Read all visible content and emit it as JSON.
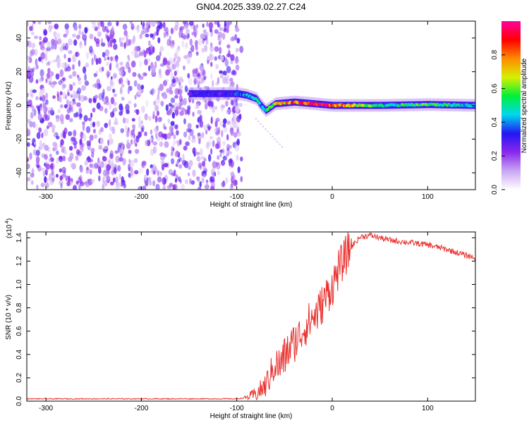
{
  "title": "GN04.2025.339.02.27.C24",
  "colors": {
    "snr_line": "#e8312e",
    "colormap": [
      "#ffffff",
      "#c9a6f2",
      "#8a28ee",
      "#2216f2",
      "#00d7f0",
      "#00f03a",
      "#d7f000",
      "#ff8a00",
      "#ff0000",
      "#ff00a0"
    ]
  },
  "chart_data": [
    {
      "type": "heatmap",
      "name": "spectrogram",
      "xlabel": "Height of straight line (km)",
      "ylabel": "Frequency (Hz)",
      "xlim": [
        -320,
        150
      ],
      "ylim": [
        -50,
        50
      ],
      "x_ticks": [
        -300,
        -200,
        -100,
        0,
        100
      ],
      "y_ticks": [
        -40,
        -20,
        0,
        20,
        40
      ],
      "grid": false,
      "noise_region_x": [
        -320,
        -95
      ],
      "trace": {
        "x": [
          -150,
          -130,
          -110,
          -100,
          -90,
          -80,
          -75,
          -70,
          -60,
          -40,
          -20,
          0,
          50,
          100,
          150
        ],
        "y": [
          7,
          7,
          7,
          7,
          6,
          4,
          0,
          -3,
          1,
          2,
          1,
          0,
          0,
          0.5,
          0
        ],
        "amplitude": [
          0.3,
          0.35,
          0.3,
          0.4,
          0.45,
          0.5,
          0.45,
          0.5,
          0.7,
          0.85,
          0.95,
          0.9,
          0.5,
          0.6,
          0.45
        ]
      },
      "colorbar": {
        "label": "Normalized spectral amplitude",
        "range": [
          0,
          1
        ],
        "ticks": [
          0.0,
          0.2,
          0.4,
          0.6,
          0.8
        ]
      }
    },
    {
      "type": "line",
      "name": "snr",
      "xlabel": "Height of straight line (km)",
      "ylabel": "SNR (10 * v/v)",
      "y_scale_label": "(x10",
      "y_scale_exp": "4",
      "xlim": [
        -320,
        150
      ],
      "ylim": [
        0,
        1.45
      ],
      "x_ticks": [
        -300,
        -200,
        -100,
        0,
        100
      ],
      "y_ticks": [
        0.0,
        0.2,
        0.4,
        0.6,
        0.8,
        1.0,
        1.2,
        1.4
      ],
      "grid": false,
      "series": [
        {
          "x": [
            -320,
            -100,
            -90,
            -80,
            -70,
            -65,
            -60,
            -55,
            -50,
            -45,
            -40,
            -35,
            -30,
            -25,
            -20,
            -15,
            -10,
            -5,
            0,
            5,
            10,
            15,
            20,
            25,
            30,
            40,
            50,
            60,
            80,
            100,
            120,
            140,
            150
          ],
          "y": [
            0.02,
            0.02,
            0.03,
            0.06,
            0.13,
            0.22,
            0.32,
            0.3,
            0.38,
            0.45,
            0.5,
            0.55,
            0.62,
            0.67,
            0.72,
            0.76,
            0.84,
            0.92,
            0.98,
            1.1,
            1.18,
            1.26,
            1.32,
            1.37,
            1.41,
            1.42,
            1.4,
            1.38,
            1.36,
            1.34,
            1.3,
            1.25,
            1.23
          ]
        }
      ]
    }
  ]
}
